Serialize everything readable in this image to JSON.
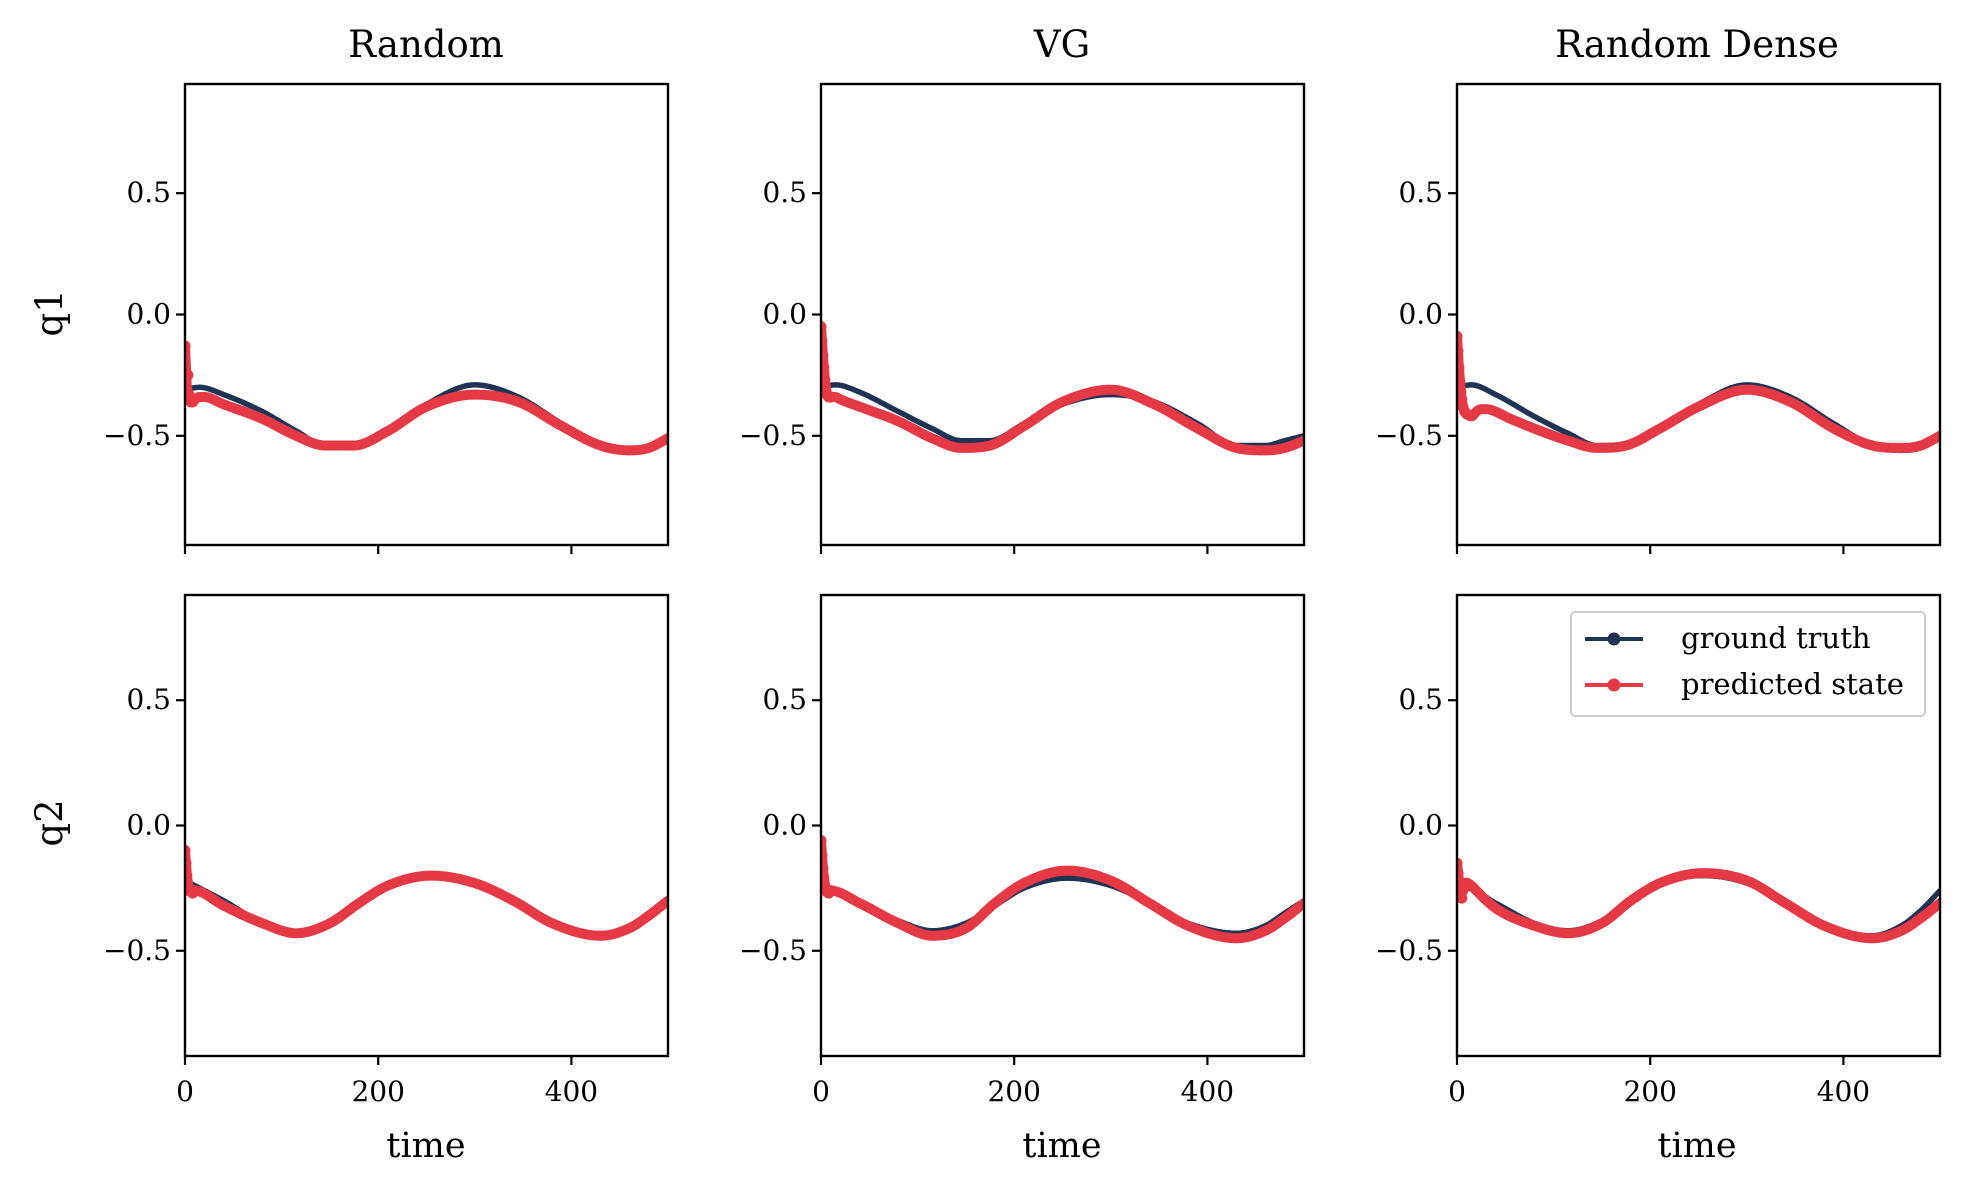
{
  "chart_data": {
    "type": "line",
    "layout": "2 rows x 3 columns, shared x axis per column, shared y axis per row",
    "column_titles": [
      "Random",
      "VG",
      "Random Dense"
    ],
    "row_labels": [
      "q1",
      "q2"
    ],
    "xlabel": "time",
    "xlim": [
      0,
      500
    ],
    "x_ticks": [
      0,
      200,
      400
    ],
    "x_tick_labels": [
      "0",
      "200",
      "400"
    ],
    "rows": [
      {
        "ylim": [
          -0.95,
          0.95
        ],
        "y_ticks": [
          -0.5,
          0.0,
          0.5
        ],
        "y_tick_labels": [
          "−0.5",
          "0.0",
          "0.5"
        ]
      },
      {
        "ylim": [
          -0.92,
          0.92
        ],
        "y_ticks": [
          -0.5,
          0.0,
          0.5
        ],
        "y_tick_labels": [
          "−0.5",
          "0.0",
          "0.5"
        ]
      }
    ],
    "legend": {
      "position": "upper right",
      "panel": "Random Dense / q2",
      "entries": [
        {
          "label": "ground truth",
          "color": "#1f3355"
        },
        {
          "label": "predicted state",
          "color": "#e63946"
        }
      ]
    },
    "panels": [
      {
        "title": "Random",
        "row_label": "q1",
        "series": [
          {
            "name": "ground truth",
            "color": "#1f3355",
            "x": [
              0,
              15,
              40,
              80,
              115,
              145,
              175,
              210,
              250,
              300,
              345,
              390,
              430,
              460,
              480,
              500
            ],
            "y": [
              -0.31,
              -0.3,
              -0.33,
              -0.4,
              -0.48,
              -0.54,
              -0.54,
              -0.48,
              -0.37,
              -0.29,
              -0.34,
              -0.45,
              -0.54,
              -0.56,
              -0.55,
              -0.51
            ]
          },
          {
            "name": "predicted state",
            "color": "#e63946",
            "x": [
              0,
              1,
              2,
              3,
              4,
              5,
              6,
              8,
              10,
              15,
              20,
              40,
              80,
              115,
              145,
              175,
              210,
              250,
              300,
              345,
              390,
              430,
              460,
              480,
              500
            ],
            "y": [
              -0.13,
              -0.24,
              -0.31,
              -0.25,
              -0.33,
              -0.35,
              -0.36,
              -0.36,
              -0.35,
              -0.34,
              -0.34,
              -0.37,
              -0.43,
              -0.5,
              -0.54,
              -0.54,
              -0.48,
              -0.38,
              -0.33,
              -0.36,
              -0.46,
              -0.54,
              -0.56,
              -0.55,
              -0.51
            ]
          }
        ]
      },
      {
        "title": "VG",
        "row_label": "q1",
        "series": [
          {
            "name": "ground truth",
            "color": "#1f3355",
            "x": [
              0,
              15,
              40,
              80,
              115,
              145,
              175,
              210,
              250,
              300,
              345,
              390,
              430,
              460,
              480,
              500
            ],
            "y": [
              -0.3,
              -0.29,
              -0.32,
              -0.4,
              -0.47,
              -0.52,
              -0.52,
              -0.45,
              -0.37,
              -0.33,
              -0.36,
              -0.45,
              -0.54,
              -0.54,
              -0.52,
              -0.5
            ]
          },
          {
            "name": "predicted state",
            "color": "#e63946",
            "x": [
              0,
              1,
              2,
              3,
              4,
              5,
              6,
              8,
              10,
              15,
              20,
              40,
              80,
              115,
              145,
              175,
              210,
              250,
              300,
              345,
              390,
              430,
              460,
              480,
              500
            ],
            "y": [
              -0.05,
              -0.11,
              -0.17,
              -0.22,
              -0.27,
              -0.31,
              -0.33,
              -0.34,
              -0.34,
              -0.34,
              -0.35,
              -0.38,
              -0.44,
              -0.51,
              -0.55,
              -0.54,
              -0.46,
              -0.36,
              -0.31,
              -0.37,
              -0.47,
              -0.55,
              -0.56,
              -0.55,
              -0.52
            ]
          }
        ]
      },
      {
        "title": "Random Dense",
        "row_label": "q1",
        "series": [
          {
            "name": "ground truth",
            "color": "#1f3355",
            "x": [
              0,
              15,
              40,
              80,
              115,
              145,
              175,
              210,
              250,
              300,
              345,
              390,
              430,
              460,
              480,
              500
            ],
            "y": [
              -0.3,
              -0.29,
              -0.33,
              -0.42,
              -0.49,
              -0.54,
              -0.54,
              -0.47,
              -0.37,
              -0.29,
              -0.34,
              -0.45,
              -0.54,
              -0.56,
              -0.55,
              -0.51
            ]
          },
          {
            "name": "predicted state",
            "color": "#e63946",
            "x": [
              0,
              1,
              2,
              3,
              4,
              5,
              6,
              8,
              10,
              15,
              20,
              25,
              30,
              40,
              50,
              80,
              115,
              145,
              175,
              210,
              250,
              300,
              345,
              390,
              430,
              460,
              480,
              500
            ],
            "y": [
              -0.09,
              -0.15,
              -0.22,
              -0.28,
              -0.32,
              -0.35,
              -0.38,
              -0.4,
              -0.41,
              -0.42,
              -0.4,
              -0.39,
              -0.39,
              -0.4,
              -0.42,
              -0.47,
              -0.52,
              -0.55,
              -0.54,
              -0.47,
              -0.38,
              -0.31,
              -0.36,
              -0.47,
              -0.54,
              -0.55,
              -0.54,
              -0.5
            ]
          }
        ]
      },
      {
        "title": "Random",
        "row_label": "q2",
        "series": [
          {
            "name": "ground truth",
            "color": "#1f3355",
            "x": [
              0,
              10,
              40,
              80,
              115,
              150,
              180,
              210,
              255,
              300,
              340,
              380,
              430,
              460,
              480,
              500
            ],
            "y": [
              -0.22,
              -0.24,
              -0.3,
              -0.39,
              -0.43,
              -0.39,
              -0.31,
              -0.24,
              -0.2,
              -0.23,
              -0.3,
              -0.39,
              -0.44,
              -0.41,
              -0.36,
              -0.29
            ]
          },
          {
            "name": "predicted state",
            "color": "#e63946",
            "x": [
              0,
              1,
              2,
              3,
              4,
              5,
              8,
              10,
              40,
              80,
              115,
              150,
              180,
              210,
              255,
              300,
              340,
              380,
              430,
              460,
              480,
              500
            ],
            "y": [
              -0.1,
              -0.15,
              -0.2,
              -0.24,
              -0.26,
              -0.26,
              -0.27,
              -0.26,
              -0.32,
              -0.39,
              -0.43,
              -0.39,
              -0.31,
              -0.24,
              -0.2,
              -0.23,
              -0.3,
              -0.39,
              -0.44,
              -0.41,
              -0.36,
              -0.3
            ]
          }
        ]
      },
      {
        "title": "VG",
        "row_label": "q2",
        "series": [
          {
            "name": "ground truth",
            "color": "#1f3355",
            "x": [
              0,
              10,
              40,
              80,
              115,
              150,
              180,
              210,
              255,
              300,
              340,
              380,
              430,
              460,
              480,
              500
            ],
            "y": [
              -0.24,
              -0.26,
              -0.31,
              -0.38,
              -0.42,
              -0.39,
              -0.32,
              -0.25,
              -0.21,
              -0.24,
              -0.31,
              -0.39,
              -0.43,
              -0.4,
              -0.35,
              -0.3
            ]
          },
          {
            "name": "predicted state",
            "color": "#e63946",
            "x": [
              0,
              1,
              2,
              3,
              4,
              5,
              8,
              10,
              40,
              80,
              115,
              150,
              180,
              210,
              255,
              300,
              340,
              380,
              430,
              460,
              480,
              500
            ],
            "y": [
              -0.06,
              -0.12,
              -0.17,
              -0.21,
              -0.24,
              -0.26,
              -0.27,
              -0.26,
              -0.31,
              -0.39,
              -0.44,
              -0.41,
              -0.31,
              -0.23,
              -0.18,
              -0.22,
              -0.31,
              -0.4,
              -0.45,
              -0.42,
              -0.37,
              -0.31
            ]
          }
        ]
      },
      {
        "title": "Random Dense",
        "row_label": "q2",
        "series": [
          {
            "name": "ground truth",
            "color": "#1f3355",
            "x": [
              0,
              10,
              40,
              80,
              115,
              150,
              180,
              210,
              255,
              300,
              340,
              380,
              430,
              460,
              480,
              500
            ],
            "y": [
              -0.27,
              -0.25,
              -0.31,
              -0.39,
              -0.42,
              -0.38,
              -0.3,
              -0.23,
              -0.2,
              -0.23,
              -0.31,
              -0.4,
              -0.44,
              -0.4,
              -0.34,
              -0.26
            ]
          },
          {
            "name": "predicted state",
            "color": "#e63946",
            "x": [
              0,
              1,
              2,
              3,
              4,
              5,
              6,
              8,
              10,
              15,
              20,
              40,
              80,
              115,
              150,
              180,
              210,
              255,
              300,
              340,
              380,
              430,
              460,
              480,
              500
            ],
            "y": [
              -0.15,
              -0.19,
              -0.22,
              -0.25,
              -0.27,
              -0.29,
              -0.26,
              -0.24,
              -0.23,
              -0.24,
              -0.26,
              -0.33,
              -0.4,
              -0.43,
              -0.39,
              -0.3,
              -0.23,
              -0.19,
              -0.22,
              -0.31,
              -0.4,
              -0.45,
              -0.42,
              -0.37,
              -0.31
            ]
          }
        ]
      }
    ]
  }
}
